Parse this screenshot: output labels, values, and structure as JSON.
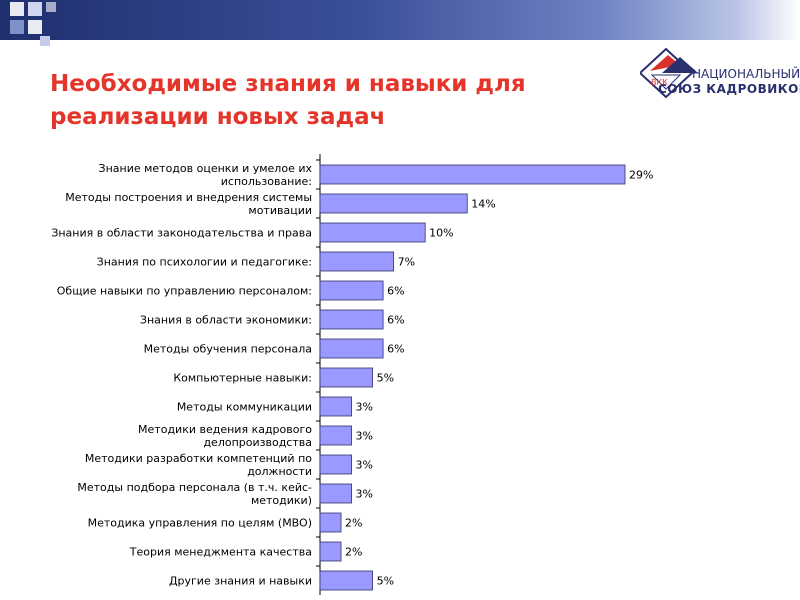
{
  "slide": {
    "title_line1": "Необходимые знания и навыки для",
    "title_line2": "реализации новых задач"
  },
  "logo": {
    "abbr": "ВКК",
    "line1": "НАЦИОНАЛЬНЫЙ",
    "line2": "СОЮЗ КАДРОВИКОВ"
  },
  "colors": {
    "bar_fill": "#9999ff",
    "bar_stroke": "#333366",
    "title": "#e5342a",
    "logo_red": "#d9312b",
    "logo_blue": "#2a2f6e"
  },
  "chart_data": {
    "type": "bar",
    "orientation": "horizontal",
    "grid": false,
    "legend": "none",
    "xlim": [
      0,
      29
    ],
    "categories": [
      [
        "Знание методов оценки и умелое их",
        "использование:"
      ],
      [
        "Методы построения и внедрения системы",
        "мотивации"
      ],
      [
        "Знания в области законодательства и права"
      ],
      [
        "Знания по психологии и педагогике:"
      ],
      [
        "Общие навыки по управлению персоналом:"
      ],
      [
        "Знания в области экономики:"
      ],
      [
        "Методы обучения персонала"
      ],
      [
        "Компьютерные навыки:"
      ],
      [
        "Методы коммуникации"
      ],
      [
        "Методики ведения кадрового",
        "делопроизводства"
      ],
      [
        "Методики разработки компетенций по",
        "должности"
      ],
      [
        "Методы подбора персонала (в т.ч. кейс-",
        "методики)"
      ],
      [
        "Методика управления по целям (MBO)"
      ],
      [
        "Теория менеджмента качества"
      ],
      [
        "Другие знания и навыки"
      ]
    ],
    "values": [
      29,
      14,
      10,
      7,
      6,
      6,
      6,
      5,
      3,
      3,
      3,
      3,
      2,
      2,
      5
    ],
    "value_labels": [
      "29%",
      "14%",
      "10%",
      "7%",
      "6%",
      "6%",
      "6%",
      "5%",
      "3%",
      "3%",
      "3%",
      "3%",
      "2%",
      "2%",
      "5%"
    ]
  }
}
